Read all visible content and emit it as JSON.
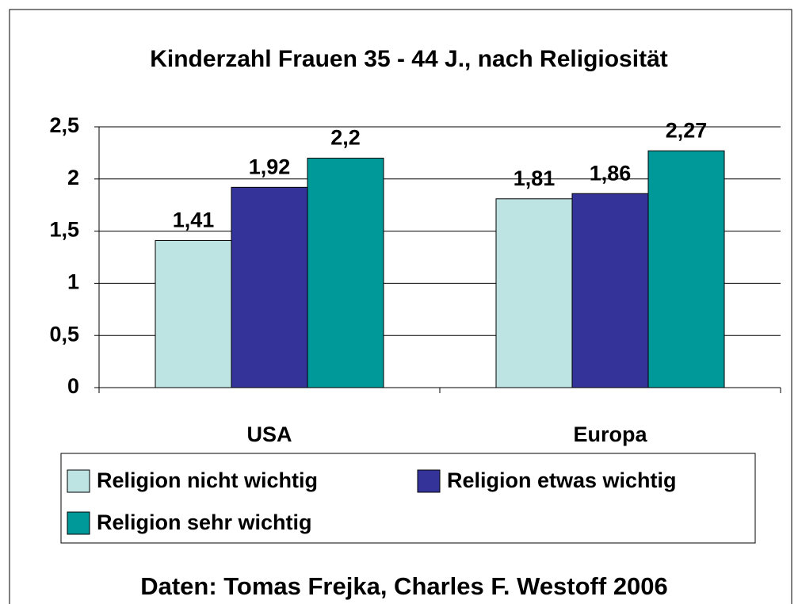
{
  "chart_data": {
    "type": "bar",
    "title": "Kinderzahl Frauen 35 - 44 J., nach Religiosität",
    "source": "Daten: Tomas Frejka, Charles F. Westoff 2006",
    "categories": [
      "USA",
      "Europa"
    ],
    "series": [
      {
        "name": "Religion nicht wichtig",
        "color": "#bde3e3",
        "values": [
          1.41,
          1.81
        ],
        "value_labels": [
          "1,41",
          "1,81"
        ]
      },
      {
        "name": "Religion etwas wichtig",
        "color": "#333399",
        "values": [
          1.92,
          1.86
        ],
        "value_labels": [
          "1,92",
          "1,86"
        ]
      },
      {
        "name": "Religion sehr wichtig",
        "color": "#009999",
        "values": [
          2.2,
          2.27
        ],
        "value_labels": [
          "2,2",
          "2,27"
        ]
      }
    ],
    "ylim": [
      0,
      2.5
    ],
    "yticks": [
      0,
      {
        "value": 0.5,
        "label": "0,5"
      },
      1,
      {
        "value": 1.5,
        "label": "1,5"
      },
      2,
      {
        "value": 2.5,
        "label": "2,5"
      }
    ],
    "grid": true,
    "legend": "bottom"
  }
}
